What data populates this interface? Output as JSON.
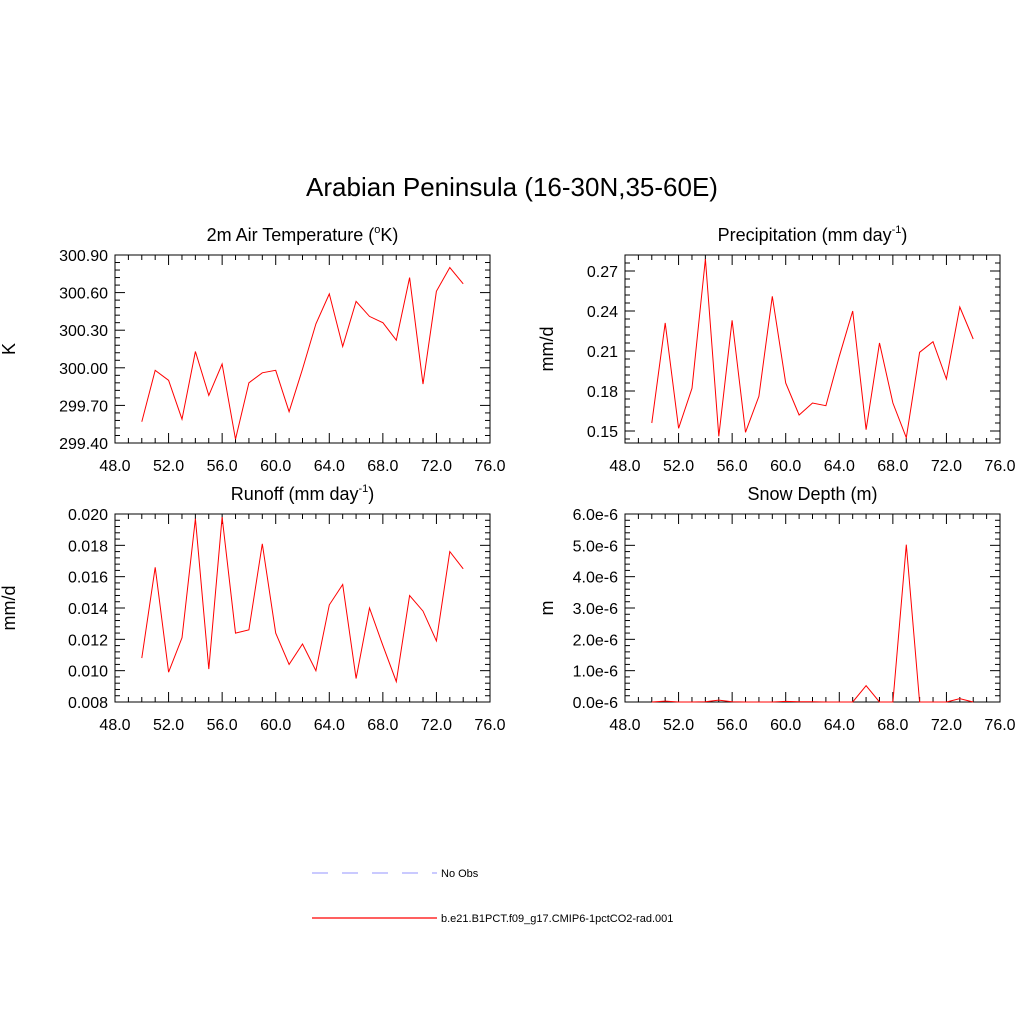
{
  "title": "Arabian Peninsula (16-30N,35-60E)",
  "colors": {
    "model": "#ff0000",
    "obs": "#aaaaff",
    "axis": "#000000"
  },
  "legend": {
    "items": [
      {
        "label": "No Obs",
        "style": "dashed",
        "color": "#aaaaff"
      },
      {
        "label": "b.e21.B1PCT.f09_g17.CMIP6-1pctCO2-rad.001",
        "style": "solid",
        "color": "#ff0000"
      }
    ]
  },
  "chart_data": [
    {
      "type": "line",
      "title": "2m Air Temperature (°K)",
      "title_parts": [
        "2m Air Temperature (",
        "o",
        "K)"
      ],
      "ylabel": "K",
      "xlim": [
        48,
        76
      ],
      "ylim": [
        299.4,
        300.9
      ],
      "xticks": [
        "48.0",
        "52.0",
        "56.0",
        "60.0",
        "64.0",
        "68.0",
        "72.0",
        "76.0"
      ],
      "xtick_values": [
        48,
        52,
        56,
        60,
        64,
        68,
        72,
        76
      ],
      "yticks": [
        "299.40",
        "299.70",
        "300.00",
        "300.30",
        "300.60",
        "300.90"
      ],
      "ytick_values": [
        299.4,
        299.7,
        300.0,
        300.3,
        300.6,
        300.9
      ],
      "x": [
        50,
        51,
        52,
        53,
        54,
        55,
        56,
        57,
        58,
        59,
        60,
        61,
        62,
        63,
        64,
        65,
        66,
        67,
        68,
        69,
        70,
        71,
        72,
        73,
        74
      ],
      "series": [
        {
          "values": [
            299.57,
            299.98,
            299.9,
            299.59,
            300.13,
            299.78,
            300.03,
            299.43,
            299.88,
            299.96,
            299.98,
            299.65,
            299.99,
            300.35,
            300.59,
            300.17,
            300.53,
            300.41,
            300.36,
            300.22,
            300.72,
            299.87,
            300.61,
            300.8,
            300.67
          ]
        }
      ]
    },
    {
      "type": "line",
      "title": "Precipitation (mm day-1)",
      "title_parts": [
        "Precipitation (mm day",
        "-1",
        ")"
      ],
      "ylabel": "mm/d",
      "xlim": [
        48,
        76
      ],
      "ylim": [
        0.141,
        0.282
      ],
      "xticks": [
        "48.0",
        "52.0",
        "56.0",
        "60.0",
        "64.0",
        "68.0",
        "72.0",
        "76.0"
      ],
      "xtick_values": [
        48,
        52,
        56,
        60,
        64,
        68,
        72,
        76
      ],
      "yticks": [
        "0.15",
        "0.18",
        "0.21",
        "0.24",
        "0.27"
      ],
      "ytick_values": [
        0.15,
        0.18,
        0.21,
        0.24,
        0.27
      ],
      "x": [
        50,
        51,
        52,
        53,
        54,
        55,
        56,
        57,
        58,
        59,
        60,
        61,
        62,
        63,
        64,
        65,
        66,
        67,
        68,
        69,
        70,
        71,
        72,
        73,
        74
      ],
      "series": [
        {
          "values": [
            0.156,
            0.231,
            0.152,
            0.182,
            0.279,
            0.146,
            0.233,
            0.149,
            0.176,
            0.251,
            0.186,
            0.162,
            0.171,
            0.169,
            0.206,
            0.24,
            0.151,
            0.216,
            0.171,
            0.145,
            0.209,
            0.217,
            0.189,
            0.243,
            0.219
          ]
        }
      ]
    },
    {
      "type": "line",
      "title": "Runoff (mm day-1)",
      "title_parts": [
        "Runoff (mm day",
        "-1",
        ")"
      ],
      "ylabel": "mm/d",
      "xlim": [
        48,
        76
      ],
      "ylim": [
        0.008,
        0.02
      ],
      "xticks": [
        "48.0",
        "52.0",
        "56.0",
        "60.0",
        "64.0",
        "68.0",
        "72.0",
        "76.0"
      ],
      "xtick_values": [
        48,
        52,
        56,
        60,
        64,
        68,
        72,
        76
      ],
      "yticks": [
        "0.008",
        "0.010",
        "0.012",
        "0.014",
        "0.016",
        "0.018",
        "0.020"
      ],
      "ytick_values": [
        0.008,
        0.01,
        0.012,
        0.014,
        0.016,
        0.018,
        0.02
      ],
      "x": [
        50,
        51,
        52,
        53,
        54,
        55,
        56,
        57,
        58,
        59,
        60,
        61,
        62,
        63,
        64,
        65,
        66,
        67,
        68,
        69,
        70,
        71,
        72,
        73,
        74
      ],
      "series": [
        {
          "values": [
            0.0108,
            0.0166,
            0.0099,
            0.0121,
            0.0197,
            0.0101,
            0.0198,
            0.0124,
            0.0126,
            0.0181,
            0.0124,
            0.0104,
            0.0117,
            0.01,
            0.0142,
            0.0155,
            0.0095,
            0.014,
            0.0116,
            0.0093,
            0.0148,
            0.0138,
            0.0119,
            0.0176,
            0.0165
          ]
        }
      ]
    },
    {
      "type": "line",
      "title": "Snow Depth (m)",
      "title_parts": [
        "Snow Depth (m)"
      ],
      "ylabel": "m",
      "xlim": [
        48,
        76
      ],
      "ylim": [
        0,
        6e-06
      ],
      "xticks": [
        "48.0",
        "52.0",
        "56.0",
        "60.0",
        "64.0",
        "68.0",
        "72.0",
        "76.0"
      ],
      "xtick_values": [
        48,
        52,
        56,
        60,
        64,
        68,
        72,
        76
      ],
      "yticks": [
        "0.0e-6",
        "1.0e-6",
        "2.0e-6",
        "3.0e-6",
        "4.0e-6",
        "5.0e-6",
        "6.0e-6"
      ],
      "ytick_values": [
        0,
        1e-06,
        2e-06,
        3e-06,
        4e-06,
        5e-06,
        6e-06
      ],
      "x": [
        50,
        51,
        52,
        53,
        54,
        55,
        56,
        57,
        58,
        59,
        60,
        61,
        62,
        63,
        64,
        65,
        66,
        67,
        68,
        69,
        70,
        71,
        72,
        73,
        74
      ],
      "series": [
        {
          "values": [
            0,
            3e-08,
            0,
            0,
            1e-08,
            6e-08,
            1e-08,
            0,
            0,
            0,
            2e-08,
            1e-08,
            1e-08,
            0,
            0,
            0,
            5.2e-07,
            0,
            0,
            5.02e-06,
            0,
            0,
            0,
            1.1e-07,
            0
          ]
        }
      ]
    }
  ]
}
